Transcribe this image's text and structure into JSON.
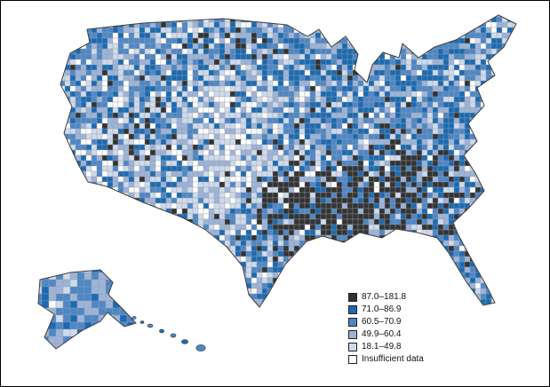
{
  "figure": {
    "background": "#ffffff",
    "border_color": "#000000",
    "description": "U.S. county-level choropleth map with rate legend"
  },
  "map": {
    "name": "us-county-choropleth",
    "county_border_color": "#9aa0a6",
    "outline_color": "#3f3f3f",
    "regions": [
      "contiguous-us",
      "alaska",
      "hawaii"
    ]
  },
  "legend": {
    "swatch_border": "#231f20",
    "items": [
      {
        "label": "87.0–181.8",
        "color": "#333333"
      },
      {
        "label": "71.0–86.9",
        "color": "#1b6ab2"
      },
      {
        "label": "60.5–70.9",
        "color": "#4e87c6"
      },
      {
        "label": "49.9–60.4",
        "color": "#9db4d8"
      },
      {
        "label": "18.1–49.8",
        "color": "#cfdaeb"
      },
      {
        "label": "Insufficient data",
        "color": "#ffffff"
      }
    ]
  }
}
